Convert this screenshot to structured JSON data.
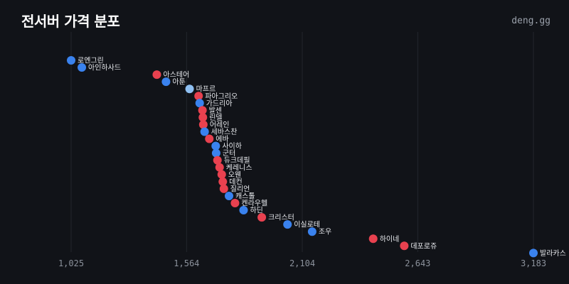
{
  "header": {
    "title": "전서버 가격 분포",
    "brand": "deng.gg"
  },
  "colors": {
    "background": "#111318",
    "red": "#e8414f",
    "blue": "#3a82ee",
    "light_blue": "#8fc0f2",
    "grid": "#22262d",
    "tick_text": "#8b919b"
  },
  "chart_data": {
    "type": "scatter",
    "title": "전서버 가격 분포",
    "xlabel": "",
    "ylabel": "",
    "xlim": [
      1025,
      3183
    ],
    "x_ticks": [
      1025,
      1564,
      2104,
      2643,
      3183
    ],
    "x_tick_labels": [
      "1,025",
      "1,564",
      "2,104",
      "2,643",
      "3,183"
    ],
    "grid": "vertical",
    "points": [
      {
        "label": "로엔그린",
        "x": 1025,
        "color": "blue"
      },
      {
        "label": "아인하사드",
        "x": 1075,
        "color": "blue"
      },
      {
        "label": "아스테어",
        "x": 1425,
        "color": "red"
      },
      {
        "label": "아툰",
        "x": 1468,
        "color": "blue"
      },
      {
        "label": "마프르",
        "x": 1578,
        "color": "light_blue"
      },
      {
        "label": "파아그리오",
        "x": 1620,
        "color": "red"
      },
      {
        "label": "가드리아",
        "x": 1625,
        "color": "blue"
      },
      {
        "label": "발센",
        "x": 1638,
        "color": "red"
      },
      {
        "label": "린델",
        "x": 1640,
        "color": "red"
      },
      {
        "label": "어레인",
        "x": 1642,
        "color": "red"
      },
      {
        "label": "세바스찬",
        "x": 1648,
        "color": "blue"
      },
      {
        "label": "에바",
        "x": 1670,
        "color": "red"
      },
      {
        "label": "사이하",
        "x": 1700,
        "color": "blue"
      },
      {
        "label": "군터",
        "x": 1702,
        "color": "blue"
      },
      {
        "label": "듀크데필",
        "x": 1708,
        "color": "red"
      },
      {
        "label": "케레니스",
        "x": 1718,
        "color": "red"
      },
      {
        "label": "오웬",
        "x": 1728,
        "color": "red"
      },
      {
        "label": "데컨",
        "x": 1733,
        "color": "red"
      },
      {
        "label": "질리언",
        "x": 1738,
        "color": "red"
      },
      {
        "label": "캐스톨",
        "x": 1762,
        "color": "blue"
      },
      {
        "label": "켄라우헬",
        "x": 1790,
        "color": "red"
      },
      {
        "label": "하딘",
        "x": 1830,
        "color": "blue"
      },
      {
        "label": "크리스터",
        "x": 1915,
        "color": "red"
      },
      {
        "label": "이실로테",
        "x": 2035,
        "color": "blue"
      },
      {
        "label": "조우",
        "x": 2150,
        "color": "blue"
      },
      {
        "label": "하이네",
        "x": 2435,
        "color": "red"
      },
      {
        "label": "데포로쥬",
        "x": 2580,
        "color": "red"
      },
      {
        "label": "발라카스",
        "x": 3183,
        "color": "blue"
      }
    ]
  }
}
